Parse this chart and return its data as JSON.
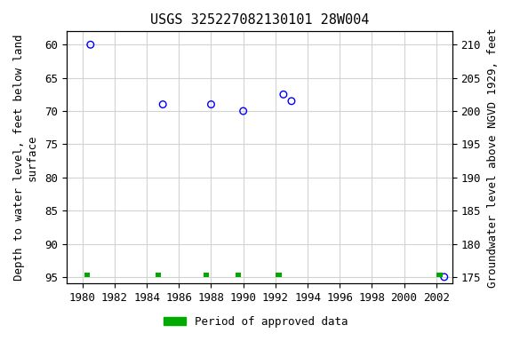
{
  "title": "USGS 325227082130101 28W004",
  "scatter_x": [
    1980.5,
    1985.0,
    1988.0,
    1990.0,
    1992.5,
    1993.0,
    2002.5
  ],
  "scatter_y": [
    60.0,
    69.0,
    69.0,
    70.0,
    67.5,
    68.5,
    95.0
  ],
  "green_bars_x": [
    1980.3,
    1984.7,
    1987.7,
    1989.7,
    1992.2,
    2002.2
  ],
  "green_bars_y": [
    95.0,
    95.0,
    95.0,
    95.0,
    95.0,
    95.0
  ],
  "scatter_color": "#0000ff",
  "green_color": "#00aa00",
  "ylim_top": 58,
  "ylim_bottom": 96,
  "xlim_left": 1979,
  "xlim_right": 2003,
  "yticks_left": [
    60,
    65,
    70,
    75,
    80,
    85,
    90,
    95
  ],
  "yticks_right": [
    210,
    205,
    200,
    195,
    190,
    185,
    180,
    175
  ],
  "xticks": [
    1980,
    1982,
    1984,
    1986,
    1988,
    1990,
    1992,
    1994,
    1996,
    1998,
    2000,
    2002
  ],
  "ylabel_left": "Depth to water level, feet below land\nsurface",
  "ylabel_right": "Groundwater level above NGVD 1929, feet",
  "legend_label": "Period of approved data",
  "title_fontsize": 11,
  "label_fontsize": 9,
  "tick_fontsize": 9
}
